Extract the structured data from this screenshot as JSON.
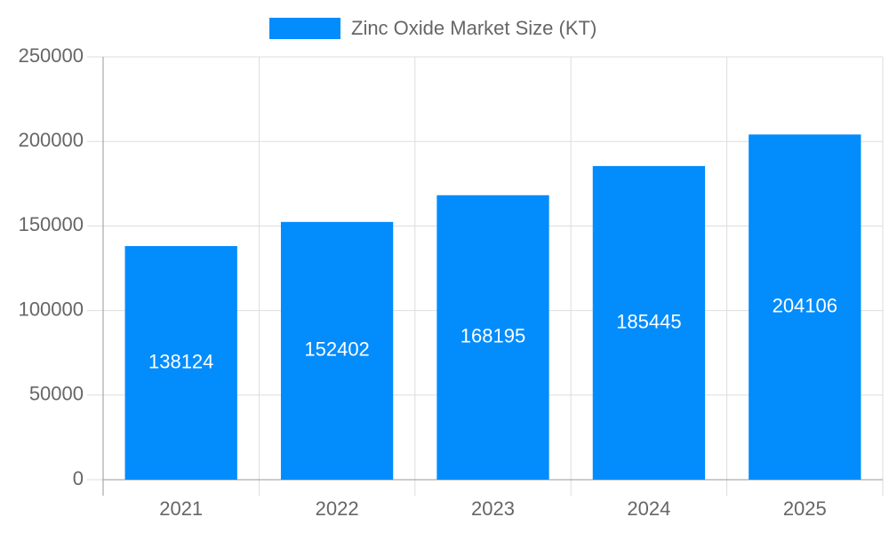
{
  "chart_data": {
    "type": "bar",
    "categories": [
      "2021",
      "2022",
      "2023",
      "2024",
      "2025"
    ],
    "series": [
      {
        "name": "Zinc Oxide Market Size (KT)",
        "color": "#038cfc",
        "values": [
          138124,
          152402,
          168195,
          185445,
          204106
        ]
      }
    ],
    "ylim": [
      0,
      250000
    ],
    "yticks": [
      0,
      50000,
      100000,
      150000,
      200000,
      250000
    ],
    "grid": true,
    "legend": "top"
  }
}
